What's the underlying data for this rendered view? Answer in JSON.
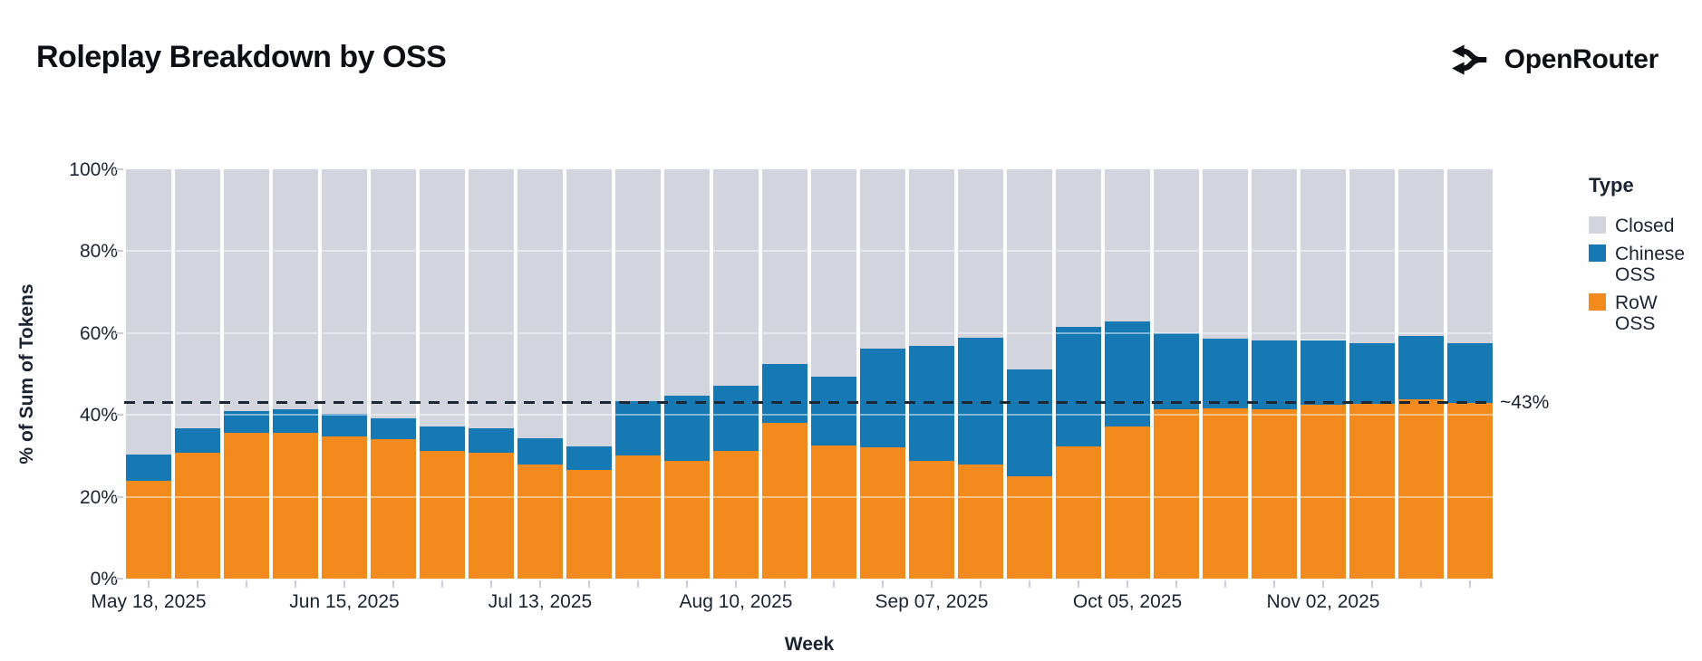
{
  "header": {
    "title": "Roleplay Breakdown by OSS",
    "brand": "OpenRouter"
  },
  "chart_data": {
    "type": "bar",
    "stacked": true,
    "title": "Roleplay Breakdown by OSS",
    "xlabel": "Week",
    "ylabel": "% of Sum of Tokens",
    "ylim": [
      0,
      100
    ],
    "y_ticks": [
      "0%",
      "20%",
      "40%",
      "60%",
      "80%",
      "100%"
    ],
    "y_tick_values": [
      0,
      20,
      40,
      60,
      80,
      100
    ],
    "x_tick_labels": [
      "May 18, 2025",
      "Jun 15, 2025",
      "Jul 13, 2025",
      "Aug 10, 2025",
      "Sep 07, 2025",
      "Oct 05, 2025",
      "Nov 02, 2025"
    ],
    "categories": [
      "May 18, 2025",
      "May 25, 2025",
      "Jun 01, 2025",
      "Jun 08, 2025",
      "Jun 15, 2025",
      "Jun 22, 2025",
      "Jun 29, 2025",
      "Jul 06, 2025",
      "Jul 13, 2025",
      "Jul 20, 2025",
      "Jul 27, 2025",
      "Aug 03, 2025",
      "Aug 10, 2025",
      "Aug 17, 2025",
      "Aug 24, 2025",
      "Aug 31, 2025",
      "Sep 07, 2025",
      "Sep 14, 2025",
      "Sep 21, 2025",
      "Sep 28, 2025",
      "Oct 05, 2025",
      "Oct 12, 2025",
      "Oct 19, 2025",
      "Oct 26, 2025",
      "Nov 02, 2025",
      "Nov 09, 2025",
      "Nov 16, 2025",
      "Nov 23, 2025"
    ],
    "series": [
      {
        "name": "RoW OSS",
        "color": "#F28A1D",
        "values": [
          23.9,
          30.8,
          35.7,
          35.7,
          34.8,
          34.1,
          31.3,
          30.8,
          27.8,
          26.5,
          30.1,
          28.7,
          31.3,
          38.0,
          32.6,
          32.0,
          28.8,
          27.8,
          25.1,
          32.3,
          37.1,
          41.3,
          41.6,
          41.3,
          42.4,
          42.7,
          43.7,
          43.0
        ]
      },
      {
        "name": "Chinese OSS",
        "color": "#1779B4",
        "values": [
          6.4,
          6.0,
          5.3,
          5.6,
          5.4,
          5.0,
          5.8,
          5.9,
          6.5,
          5.8,
          13.2,
          15.9,
          15.9,
          14.5,
          16.8,
          24.1,
          28.1,
          31.0,
          26.0,
          29.3,
          25.8,
          18.7,
          17.1,
          16.8,
          15.9,
          14.9,
          15.5,
          14.6
        ]
      },
      {
        "name": "Closed",
        "color": "#D2D5DE",
        "values": [
          69.7,
          63.2,
          59.0,
          58.7,
          59.8,
          60.9,
          62.9,
          63.3,
          65.7,
          67.7,
          56.7,
          55.4,
          52.8,
          47.5,
          50.6,
          43.9,
          43.1,
          41.2,
          48.9,
          38.4,
          37.1,
          40.0,
          41.3,
          41.9,
          41.7,
          42.4,
          40.8,
          42.4
        ]
      }
    ],
    "reference_line": {
      "value": 43,
      "label": "~43%",
      "style": "dashed",
      "color": "#1B2735"
    },
    "legend_position": "right",
    "grid": "horizontal-white"
  },
  "legend": {
    "title": "Type",
    "items": [
      {
        "label": "Closed",
        "color": "#D2D5DE"
      },
      {
        "label": "Chinese OSS",
        "color": "#1779B4"
      },
      {
        "label": "RoW OSS",
        "color": "#F28A1D"
      }
    ]
  },
  "axes": {
    "x_title": "Week",
    "y_title": "% of Sum of Tokens"
  },
  "annotation": {
    "ref_label": "~43%"
  }
}
